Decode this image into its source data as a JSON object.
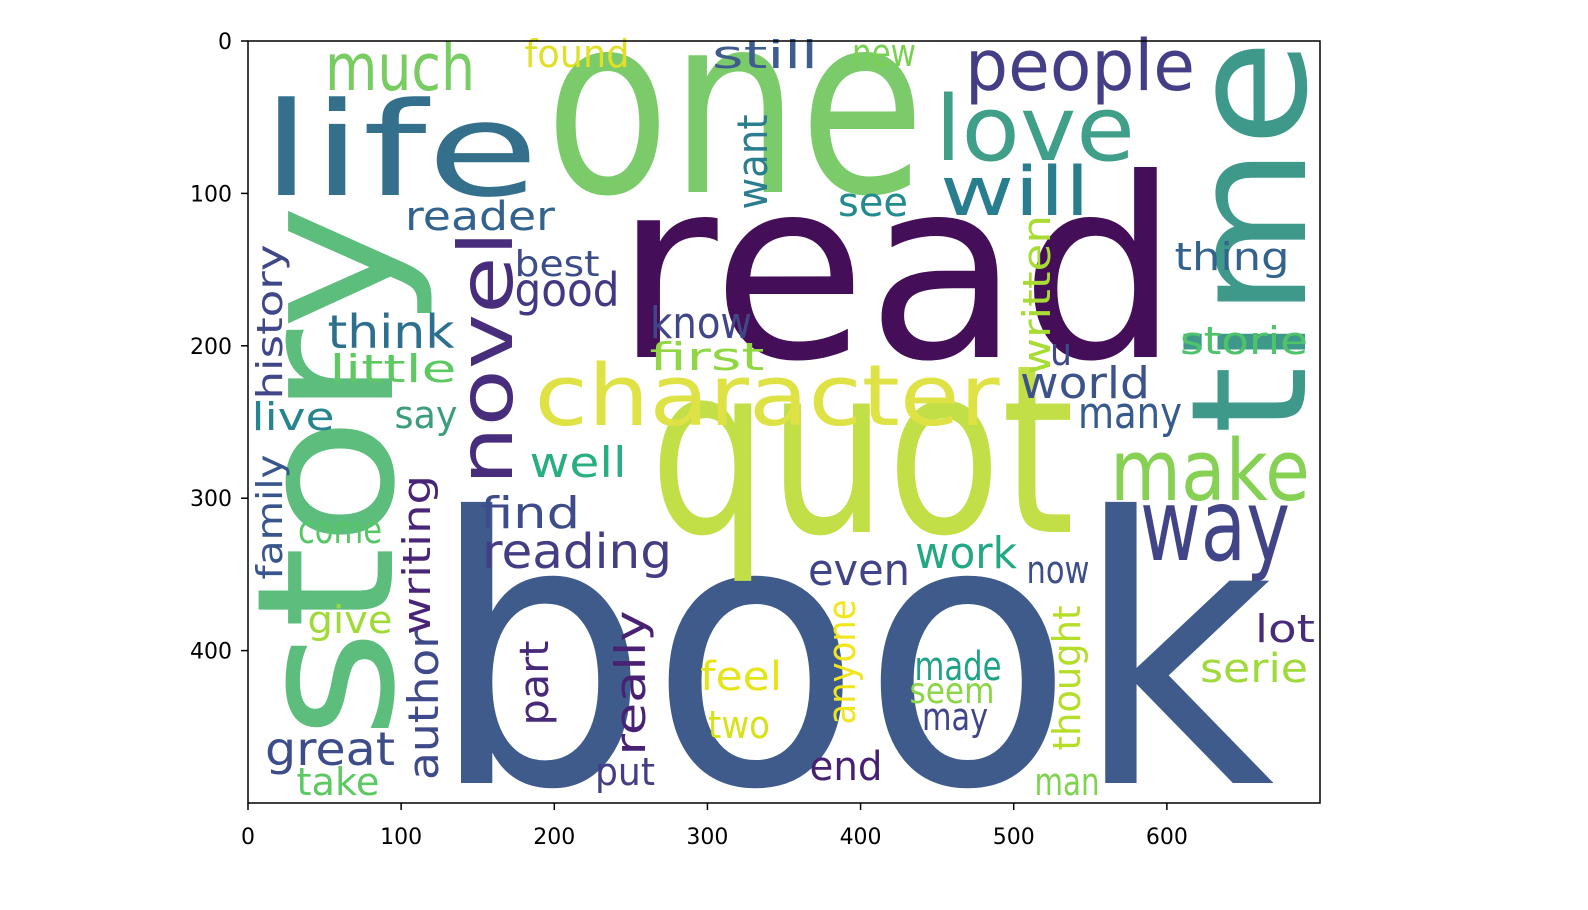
{
  "chart_data": {
    "type": "wordcloud",
    "words": [
      {
        "text": "book",
        "color": "#3e5b8c"
      },
      {
        "text": "read",
        "color": "#440f58"
      },
      {
        "text": "quot",
        "color": "#c2df48"
      },
      {
        "text": "one",
        "color": "#7bcb6a"
      },
      {
        "text": "story",
        "color": "#5cbd7d"
      },
      {
        "text": "time",
        "color": "#3f998a"
      },
      {
        "text": "life",
        "color": "#34708c"
      },
      {
        "text": "character",
        "color": "#dfe244"
      },
      {
        "text": "make",
        "color": "#86d054"
      },
      {
        "text": "way",
        "color": "#414487"
      },
      {
        "text": "love",
        "color": "#3f9f88"
      },
      {
        "text": "people",
        "color": "#433e85"
      },
      {
        "text": "will",
        "color": "#287d8e"
      },
      {
        "text": "much",
        "color": "#77cc62"
      },
      {
        "text": "novel",
        "color": "#472d7b"
      },
      {
        "text": "found",
        "color": "#e0e028"
      },
      {
        "text": "still",
        "color": "#3e5d8e"
      },
      {
        "text": "new",
        "color": "#7ad151"
      },
      {
        "text": "want",
        "color": "#2b7d8f"
      },
      {
        "text": "see",
        "color": "#238a8d"
      },
      {
        "text": "reader",
        "color": "#33638d"
      },
      {
        "text": "best",
        "color": "#3d4d8a"
      },
      {
        "text": "good",
        "color": "#453781"
      },
      {
        "text": "think",
        "color": "#2d708e"
      },
      {
        "text": "little",
        "color": "#5ec962"
      },
      {
        "text": "history",
        "color": "#3f4788"
      },
      {
        "text": "live",
        "color": "#25848e"
      },
      {
        "text": "say",
        "color": "#3c9d7e"
      },
      {
        "text": "know",
        "color": "#404687"
      },
      {
        "text": "first",
        "color": "#90d743"
      },
      {
        "text": "written",
        "color": "#a8db34"
      },
      {
        "text": "u",
        "color": "#3e4a89"
      },
      {
        "text": "thing",
        "color": "#33638d"
      },
      {
        "text": "storie",
        "color": "#4ec36b"
      },
      {
        "text": "world",
        "color": "#3b528b"
      },
      {
        "text": "many",
        "color": "#375b8d"
      },
      {
        "text": "well",
        "color": "#29af7f"
      },
      {
        "text": "find",
        "color": "#3e4c8a"
      },
      {
        "text": "reading",
        "color": "#433d84"
      },
      {
        "text": "come",
        "color": "#56c667"
      },
      {
        "text": "family",
        "color": "#39568c"
      },
      {
        "text": "writing",
        "color": "#482576"
      },
      {
        "text": "work",
        "color": "#22a884"
      },
      {
        "text": "even",
        "color": "#414487"
      },
      {
        "text": "now",
        "color": "#3d4e8a"
      },
      {
        "text": "give",
        "color": "#a0da39"
      },
      {
        "text": "anyone",
        "color": "#f1e51d"
      },
      {
        "text": "thought",
        "color": "#b5de2b"
      },
      {
        "text": "lot",
        "color": "#472c7a"
      },
      {
        "text": "author",
        "color": "#3e4a89"
      },
      {
        "text": "part",
        "color": "#482979"
      },
      {
        "text": "really",
        "color": "#482173"
      },
      {
        "text": "feel",
        "color": "#e5e419"
      },
      {
        "text": "made",
        "color": "#1fa287"
      },
      {
        "text": "seem",
        "color": "#8bd646"
      },
      {
        "text": "serie",
        "color": "#9fda3a"
      },
      {
        "text": "great",
        "color": "#3e4c8a"
      },
      {
        "text": "two",
        "color": "#d8e219"
      },
      {
        "text": "may",
        "color": "#404588"
      },
      {
        "text": "take",
        "color": "#5ec962"
      },
      {
        "text": "put",
        "color": "#433e85"
      },
      {
        "text": "end",
        "color": "#482071"
      },
      {
        "text": "man",
        "color": "#7fd34e"
      }
    ],
    "xlim": [
      0,
      700
    ],
    "ylim": [
      500,
      0
    ],
    "xticks": [
      0,
      100,
      200,
      300,
      400,
      500,
      600
    ],
    "yticks": [
      0,
      100,
      200,
      300,
      400
    ]
  }
}
